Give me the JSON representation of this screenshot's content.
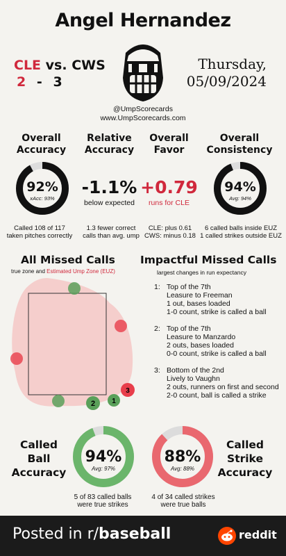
{
  "umpire": "Angel Hernandez",
  "game": {
    "away_team": "CLE",
    "vs": "vs.",
    "home_team": "CWS",
    "away_score": "2",
    "dash": "-",
    "home_score": "3",
    "day": "Thursday,",
    "date": "05/09/2024"
  },
  "handle": "@UmpScorecards",
  "site": "www.UmpScorecards.com",
  "metrics": {
    "accuracy": {
      "title1": "Overall",
      "title2": "Accuracy",
      "value": "92%",
      "sub": "xAcc: 93%",
      "level": 0.92,
      "note1": "Called 108 of 117",
      "note2": "taken pitches correctly"
    },
    "relative": {
      "title1": "Relative",
      "title2": "Accuracy",
      "value": "-1.1%",
      "sub": "below expected",
      "note1": "1.3 fewer correct",
      "note2": "calls than avg. ump"
    },
    "favor": {
      "title1": "Overall",
      "title2": "Favor",
      "value": "+0.79",
      "sub": "runs for CLE",
      "note1": "CLE: plus 0.61",
      "note2": "CWS: minus 0.18"
    },
    "consistency": {
      "title1": "Overall",
      "title2": "Consistency",
      "value": "94%",
      "sub": "Avg: 94%",
      "level": 0.94,
      "note1": "6 called balls inside EUZ",
      "note2": "1 called strikes outside EUZ"
    }
  },
  "missed": {
    "title": "All Missed Calls",
    "legend_true": "true zone and",
    "legend_euz": "Estimated Ump Zone (EUZ)",
    "markers": [
      {
        "label": "1",
        "color": "#5aa05a"
      },
      {
        "label": "2",
        "color": "#5aa05a"
      },
      {
        "label": "3",
        "color": "#e83e4b"
      }
    ]
  },
  "impactful": {
    "title": "Impactful Missed Calls",
    "subtitle": "largest changes in run expectancy",
    "items": [
      {
        "num": "1:",
        "lines": [
          "Top of the 7th",
          "Leasure to Freeman",
          "1 out, bases loaded",
          "1-0 count, strike is called a ball"
        ]
      },
      {
        "num": "2:",
        "lines": [
          "Top of the 7th",
          "Leasure to Manzardo",
          "2 outs, bases loaded",
          "0-0 count, strike is called a ball"
        ]
      },
      {
        "num": "3:",
        "lines": [
          "Bottom of the 2nd",
          "Lively to Vaughn",
          "2 outs, runners on first and second",
          "2-0 count, ball is called a strike"
        ]
      }
    ]
  },
  "called_ball": {
    "title": [
      "Called",
      "Ball",
      "Accuracy"
    ],
    "value": "94%",
    "sub": "Avg: 97%",
    "level": 0.94,
    "note1": "5 of 83 called balls",
    "note2": "were true strikes",
    "color": "#6bb56b"
  },
  "called_strike": {
    "title": [
      "Called",
      "Strike",
      "Accuracy"
    ],
    "value": "88%",
    "sub": "Avg: 88%",
    "level": 0.88,
    "note1": "4 of 34 called strikes",
    "note2": "were true balls",
    "color": "#e9686f"
  },
  "footer": {
    "posted": "Posted in r/",
    "sub": "baseball",
    "brand": "reddit"
  },
  "colors": {
    "red": "#d0283c",
    "green": "#5aa05a",
    "ring_dark": "#111111"
  }
}
